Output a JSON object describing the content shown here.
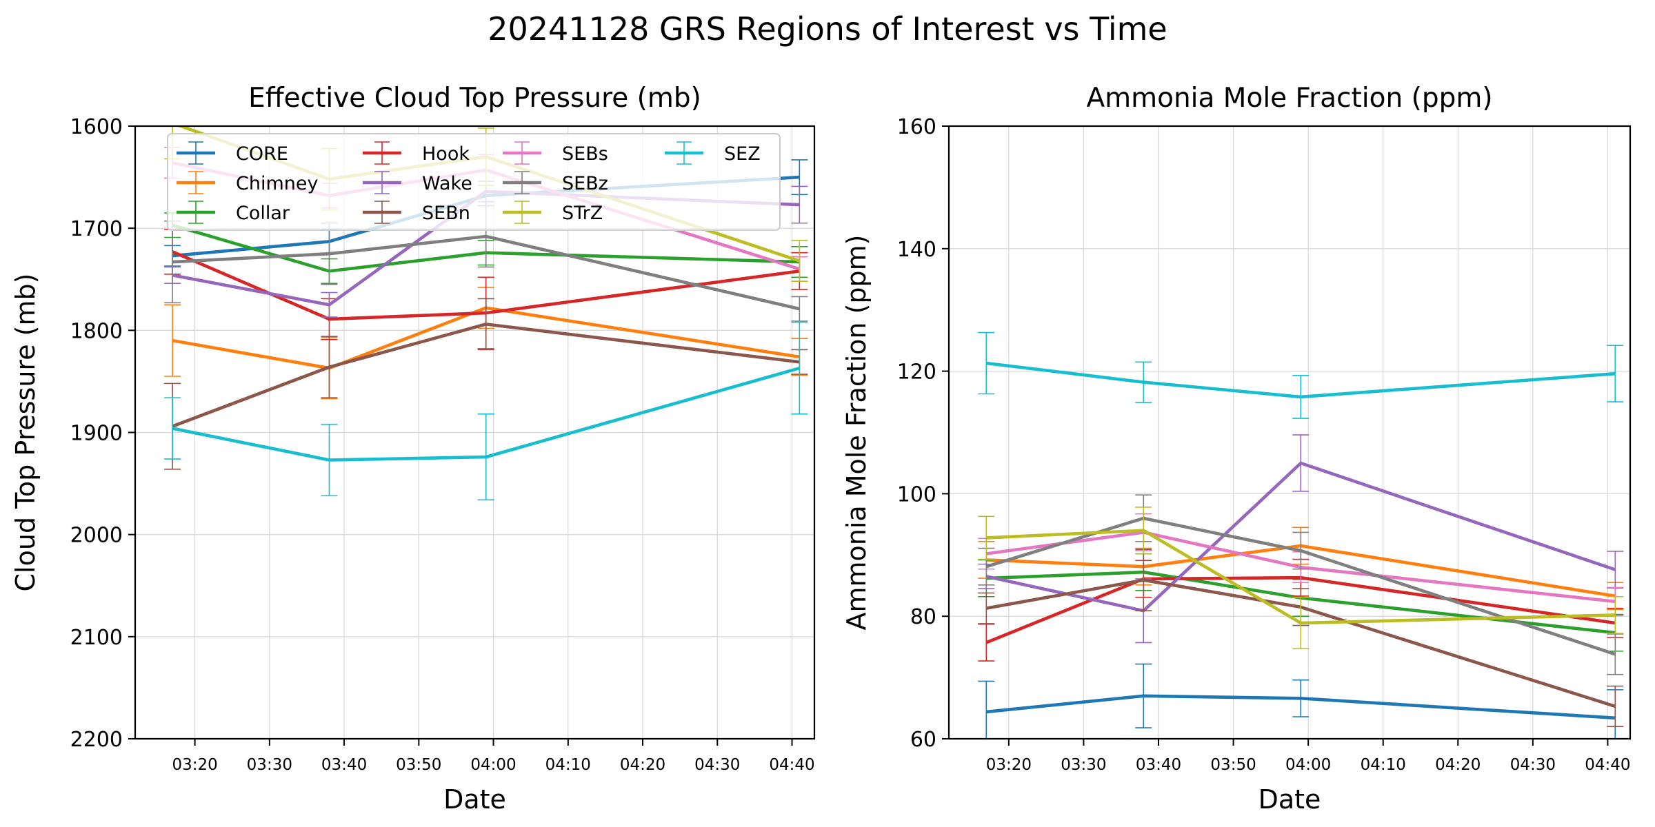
{
  "figure": {
    "title": "20241128 GRS Regions of Interest vs Time"
  },
  "colors": {
    "CORE": "#1f77b4",
    "Chimney": "#ff7f0e",
    "Collar": "#2ca02c",
    "Hook": "#d62728",
    "Wake": "#9467bd",
    "SEBn": "#8c564b",
    "SEBs": "#e377c2",
    "SEBz": "#7f7f7f",
    "STrZ": "#bcbd22",
    "SEZ": "#17becf"
  },
  "chart_data": [
    {
      "type": "line",
      "title": "Effective Cloud Top Pressure (mb)",
      "xlabel": "Date",
      "ylabel": "Cloud Top Pressure (mb)",
      "x": [
        "03:17",
        "03:38",
        "03:59",
        "04:41"
      ],
      "x_ticks": [
        "03:20",
        "03:30",
        "03:40",
        "03:50",
        "04:00",
        "04:10",
        "04:20",
        "04:30",
        "04:40"
      ],
      "xlim": [
        "03:12",
        "04:43"
      ],
      "ylim": [
        1600,
        2200
      ],
      "y_inverted": true,
      "y_ticks": [
        1600,
        1700,
        1800,
        1900,
        2000,
        2100,
        2200
      ],
      "grid": true,
      "legend": {
        "placement": "top",
        "columns": 4
      },
      "series": [
        {
          "name": "CORE",
          "values": [
            1727,
            1713,
            1668,
            1650
          ],
          "errors": [
            10,
            12,
            10,
            17
          ]
        },
        {
          "name": "Chimney",
          "values": [
            1810,
            1837,
            1778,
            1826
          ],
          "errors": [
            35,
            30,
            20,
            18
          ]
        },
        {
          "name": "Collar",
          "values": [
            1697,
            1742,
            1724,
            1733
          ],
          "errors": [
            12,
            12,
            12,
            15
          ]
        },
        {
          "name": "Hook",
          "values": [
            1723,
            1789,
            1783,
            1742
          ],
          "errors": [
            22,
            20,
            35,
            18
          ]
        },
        {
          "name": "Wake",
          "values": [
            1746,
            1775,
            1664,
            1677
          ],
          "errors": [
            8,
            12,
            10,
            18
          ]
        },
        {
          "name": "SEBn",
          "values": [
            1894,
            1836,
            1794,
            1831
          ],
          "errors": [
            42,
            30,
            25,
            12
          ]
        },
        {
          "name": "SEBs",
          "values": [
            1636,
            1668,
            1643,
            1740
          ],
          "errors": [
            15,
            12,
            15,
            12
          ]
        },
        {
          "name": "SEBz",
          "values": [
            1733,
            1725,
            1708,
            1779
          ],
          "errors": [
            40,
            30,
            30,
            12
          ]
        },
        {
          "name": "STrZ",
          "values": [
            1597,
            1652,
            1630,
            1732
          ],
          "errors": [
            35,
            30,
            28,
            20
          ]
        },
        {
          "name": "SEZ",
          "values": [
            1896,
            1927,
            1924,
            1837
          ],
          "errors": [
            30,
            35,
            42,
            45
          ]
        }
      ]
    },
    {
      "type": "line",
      "title": "Ammonia Mole Fraction (ppm)",
      "xlabel": "Date",
      "ylabel": "Ammonia Mole Fraction (ppm)",
      "x": [
        "03:17",
        "03:38",
        "03:59",
        "04:41"
      ],
      "x_ticks": [
        "03:20",
        "03:30",
        "03:40",
        "03:50",
        "04:00",
        "04:10",
        "04:20",
        "04:30",
        "04:40"
      ],
      "xlim": [
        "03:12",
        "04:43"
      ],
      "ylim": [
        60,
        160
      ],
      "y_inverted": false,
      "y_ticks": [
        60,
        80,
        100,
        120,
        140,
        160
      ],
      "grid": true,
      "series": [
        {
          "name": "CORE",
          "values": [
            64.4,
            67.0,
            66.6,
            63.4
          ],
          "errors": [
            5.0,
            5.2,
            3.0,
            4.6
          ]
        },
        {
          "name": "Chimney",
          "values": [
            89.2,
            88.1,
            91.5,
            83.3
          ],
          "errors": [
            3.0,
            3.0,
            3.0,
            2.2
          ]
        },
        {
          "name": "Collar",
          "values": [
            86.2,
            87.2,
            83.0,
            77.3
          ],
          "errors": [
            3.0,
            3.0,
            3.0,
            3.0
          ]
        },
        {
          "name": "Hook",
          "values": [
            75.7,
            86.1,
            86.3,
            78.9
          ],
          "errors": [
            3.0,
            3.0,
            3.0,
            2.4
          ]
        },
        {
          "name": "Wake",
          "values": [
            86.5,
            80.9,
            105.0,
            87.6
          ],
          "errors": [
            2.0,
            5.2,
            4.6,
            3.0
          ]
        },
        {
          "name": "SEBn",
          "values": [
            81.3,
            85.9,
            81.5,
            65.3
          ],
          "errors": [
            2.5,
            5.0,
            3.0,
            3.3
          ]
        },
        {
          "name": "SEBs",
          "values": [
            90.2,
            93.7,
            88.0,
            82.4
          ],
          "errors": [
            2.5,
            3.0,
            2.5,
            2.3
          ]
        },
        {
          "name": "SEBz",
          "values": [
            88.1,
            96.0,
            90.7,
            73.8
          ],
          "errors": [
            3.0,
            3.8,
            3.0,
            3.3
          ]
        },
        {
          "name": "STrZ",
          "values": [
            92.8,
            94.0,
            78.9,
            80.2
          ],
          "errors": [
            3.5,
            3.8,
            4.2,
            3.0
          ]
        },
        {
          "name": "SEZ",
          "values": [
            121.3,
            118.2,
            115.8,
            119.6
          ],
          "errors": [
            5.0,
            3.3,
            3.5,
            4.6
          ]
        }
      ]
    }
  ]
}
